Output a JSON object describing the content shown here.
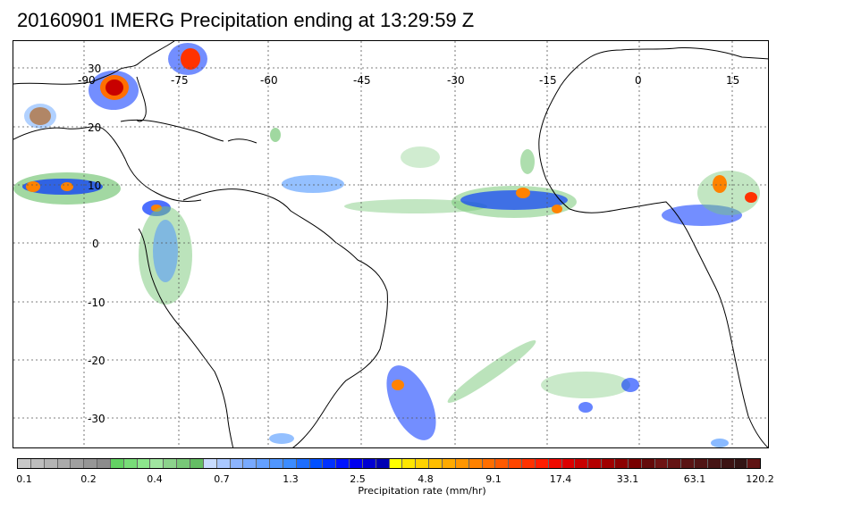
{
  "title": "20160901 IMERG Precipitation ending at 13:29:59 Z",
  "map": {
    "lon_labels": [
      "-90",
      "-75",
      "-60",
      "-45",
      "-30",
      "-15",
      "0",
      "15"
    ],
    "lat_labels": [
      "30",
      "20",
      "10",
      "0",
      "-10",
      "-20",
      "-30"
    ],
    "lon_values": [
      -90,
      -75,
      -60,
      -45,
      -30,
      -15,
      0,
      15
    ],
    "lat_values": [
      30,
      20,
      10,
      0,
      -10,
      -20,
      -30
    ],
    "coastline_color": "#000000",
    "grid_color": "#555555"
  },
  "colorbar": {
    "label": "Precipitation rate (mm/hr)",
    "tick_labels": [
      "0.1",
      "0.2",
      "0.4",
      "0.7",
      "1.3",
      "2.5",
      "4.8",
      "9.1",
      "17.4",
      "33.1",
      "63.1",
      "120.2"
    ],
    "colors": [
      "#c8c8c8",
      "#bebebe",
      "#b4b4b4",
      "#aaaaaa",
      "#a0a0a0",
      "#969696",
      "#8c8c8c",
      "#64d264",
      "#78dc78",
      "#8ce68c",
      "#a0e6a0",
      "#8cd28c",
      "#78c878",
      "#64be64",
      "#c8dcff",
      "#aac8ff",
      "#8cb4ff",
      "#78aaff",
      "#64a0ff",
      "#5096ff",
      "#3c8cff",
      "#1e6eff",
      "#0050ff",
      "#0032ff",
      "#0014ff",
      "#0000f0",
      "#0000d2",
      "#0000b4",
      "#ffff00",
      "#ffe600",
      "#ffd200",
      "#ffbe00",
      "#ffaa00",
      "#ff9600",
      "#ff8200",
      "#ff6e00",
      "#ff5a00",
      "#ff4600",
      "#ff3200",
      "#ff1e00",
      "#f00a00",
      "#dc0000",
      "#c80000",
      "#b40000",
      "#a00000",
      "#8c0000",
      "#780000",
      "#640a0a",
      "#6e1414",
      "#641414",
      "#5a1414",
      "#501414",
      "#461414",
      "#3c1414",
      "#321414",
      "#601414"
    ]
  }
}
